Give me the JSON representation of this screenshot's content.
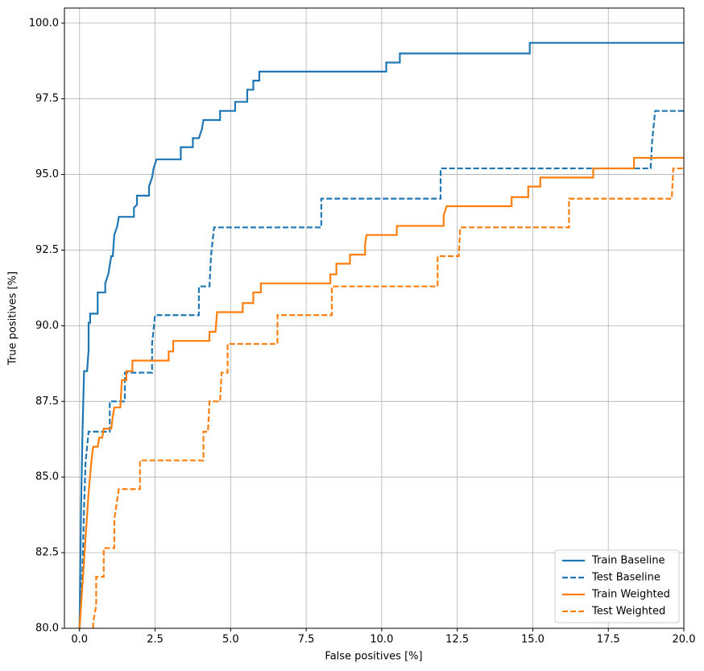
{
  "chart_data": {
    "type": "line",
    "x_label": "False positives [%]",
    "y_label": "True positives [%]",
    "xlim": [
      -0.5,
      20
    ],
    "ylim": [
      80,
      100.5
    ],
    "xticks": [
      {
        "value": 0,
        "label": "0.0"
      },
      {
        "value": 2.5,
        "label": "2.5"
      },
      {
        "value": 5,
        "label": "5.0"
      },
      {
        "value": 7.5,
        "label": "7.5"
      },
      {
        "value": 10,
        "label": "10.0"
      },
      {
        "value": 12.5,
        "label": "12.5"
      },
      {
        "value": 15,
        "label": "15.0"
      },
      {
        "value": 17.5,
        "label": "17.5"
      },
      {
        "value": 20,
        "label": "20.0"
      }
    ],
    "yticks": [
      {
        "value": 80,
        "label": "80.0"
      },
      {
        "value": 82.5,
        "label": "82.5"
      },
      {
        "value": 85,
        "label": "85.0"
      },
      {
        "value": 87.5,
        "label": "87.5"
      },
      {
        "value": 90,
        "label": "90.0"
      },
      {
        "value": 92.5,
        "label": "92.5"
      },
      {
        "value": 95,
        "label": "95.0"
      },
      {
        "value": 97.5,
        "label": "97.5"
      },
      {
        "value": 100,
        "label": "100.0"
      }
    ],
    "grid": true,
    "legend": "lower right",
    "series": [
      {
        "name": "Train Baseline",
        "color": "#1f77b4",
        "linestyle": "solid",
        "x": [
          0,
          0.05,
          0.1,
          0.15,
          0.25,
          0.3,
          0.3,
          0.35,
          0.35,
          0.6,
          0.6,
          0.85,
          0.85,
          0.95,
          1.0,
          1.05,
          1.1,
          1.15,
          1.25,
          1.3,
          1.8,
          1.8,
          1.9,
          1.9,
          2.3,
          2.3,
          2.4,
          2.45,
          2.55,
          3.35,
          3.35,
          3.75,
          3.75,
          3.95,
          4.05,
          4.1,
          4.65,
          4.65,
          5.15,
          5.15,
          5.55,
          5.55,
          5.75,
          5.75,
          5.95,
          5.95,
          10.15,
          10.15,
          10.6,
          10.6,
          14.9,
          14.9,
          20
        ],
        "values": [
          80,
          84,
          86.6,
          88.5,
          88.5,
          89.2,
          90.1,
          90.1,
          90.4,
          90.4,
          91.1,
          91.1,
          91.4,
          91.7,
          92.0,
          92.3,
          92.3,
          93.0,
          93.3,
          93.6,
          93.6,
          93.9,
          94.0,
          94.3,
          94.3,
          94.6,
          94.9,
          95.2,
          95.5,
          95.5,
          95.9,
          95.9,
          96.2,
          96.2,
          96.5,
          96.8,
          96.8,
          97.1,
          97.1,
          97.4,
          97.4,
          97.8,
          97.8,
          98.1,
          98.1,
          98.4,
          98.4,
          98.7,
          98.7,
          99.0,
          99.0,
          99.35,
          99.35
        ]
      },
      {
        "name": "Test Baseline",
        "color": "#1f77b4",
        "linestyle": "dashed",
        "x": [
          0,
          0.1,
          0.15,
          0.2,
          0.3,
          1.0,
          1.0,
          1.5,
          1.5,
          2.4,
          2.4,
          2.5,
          3.95,
          3.95,
          4.3,
          4.35,
          4.45,
          8.0,
          8.0,
          11.95,
          11.95,
          18.9,
          18.95,
          19.05,
          20
        ],
        "values": [
          80,
          82,
          84,
          85.5,
          86.5,
          86.5,
          87.5,
          87.5,
          88.45,
          88.45,
          89.4,
          90.35,
          90.35,
          91.3,
          91.3,
          92.3,
          93.25,
          93.25,
          94.2,
          94.2,
          95.2,
          95.2,
          96.1,
          97.1,
          97.1
        ]
      },
      {
        "name": "Train Weighted",
        "color": "#ff7f0e",
        "linestyle": "solid",
        "x": [
          0,
          0.1,
          0.2,
          0.3,
          0.4,
          0.45,
          0.6,
          0.65,
          0.75,
          0.8,
          1.05,
          1.1,
          1.15,
          1.35,
          1.4,
          1.55,
          1.55,
          1.75,
          1.75,
          2.95,
          2.95,
          3.1,
          3.1,
          4.3,
          4.3,
          4.5,
          4.55,
          5.4,
          5.4,
          5.75,
          5.75,
          6.0,
          6.0,
          8.3,
          8.3,
          8.5,
          8.5,
          8.95,
          8.95,
          9.45,
          9.45,
          9.5,
          10.5,
          10.5,
          12.05,
          12.05,
          12.15,
          14.3,
          14.3,
          14.85,
          14.85,
          15.25,
          15.25,
          17.0,
          17.0,
          18.35,
          18.35,
          20
        ],
        "values": [
          80,
          81.5,
          83,
          84.5,
          85.6,
          86,
          86,
          86.3,
          86.3,
          86.6,
          86.6,
          87,
          87.3,
          87.3,
          88.2,
          88.2,
          88.5,
          88.5,
          88.85,
          88.85,
          89.15,
          89.15,
          89.5,
          89.5,
          89.8,
          89.8,
          90.45,
          90.45,
          90.75,
          90.75,
          91.1,
          91.1,
          91.4,
          91.4,
          91.7,
          91.7,
          92.05,
          92.05,
          92.35,
          92.35,
          92.7,
          93.0,
          93.0,
          93.3,
          93.3,
          93.65,
          93.95,
          93.95,
          94.25,
          94.25,
          94.6,
          94.6,
          94.9,
          94.9,
          95.2,
          95.2,
          95.55,
          95.55
        ]
      },
      {
        "name": "Test Weighted",
        "color": "#ff7f0e",
        "linestyle": "dashed",
        "x": [
          0.45,
          0.45,
          0.55,
          0.55,
          0.8,
          0.8,
          1.15,
          1.15,
          1.3,
          2.0,
          2.0,
          4.1,
          4.1,
          4.25,
          4.3,
          4.65,
          4.7,
          4.9,
          4.9,
          6.55,
          6.55,
          8.35,
          8.35,
          11.85,
          11.85,
          12.55,
          12.6,
          16.2,
          16.2,
          19.6,
          19.65,
          20
        ],
        "values": [
          80,
          80.2,
          80.75,
          81.7,
          81.7,
          82.65,
          82.65,
          83.6,
          84.6,
          84.6,
          85.55,
          85.55,
          86.5,
          86.5,
          87.5,
          87.5,
          88.45,
          88.45,
          89.4,
          89.4,
          90.35,
          90.35,
          91.3,
          91.3,
          92.3,
          92.3,
          93.25,
          93.25,
          94.2,
          94.2,
          95.2,
          95.2
        ]
      }
    ]
  }
}
